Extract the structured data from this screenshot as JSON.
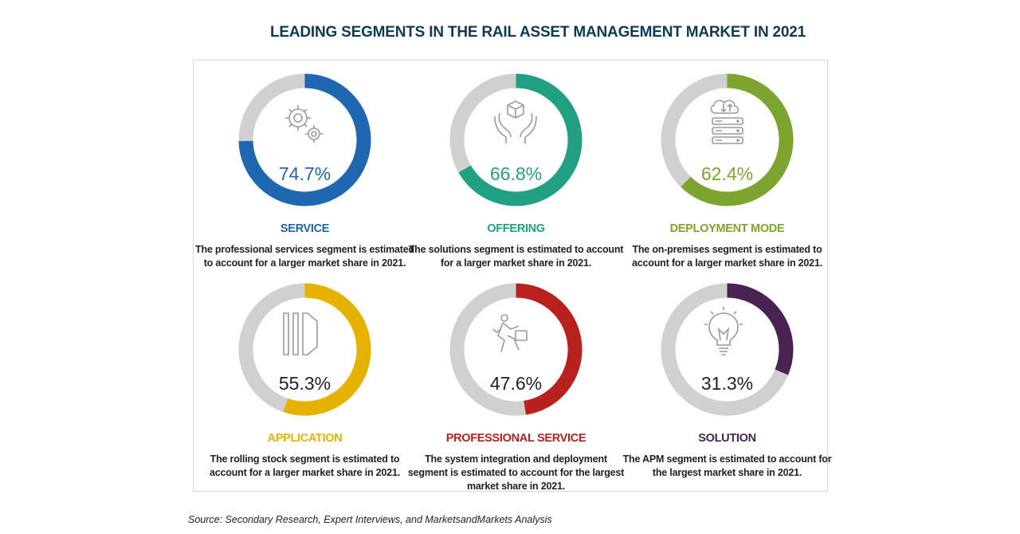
{
  "title": "LEADING SEGMENTS IN THE RAIL ASSET MANAGEMENT MARKET IN 2021",
  "source": "Source: Secondary Research, Expert Interviews, and MarketsandMarkets Analysis",
  "chart_data": {
    "type": "pie",
    "title": "LEADING SEGMENTS IN THE RAIL ASSET MANAGEMENT MARKET IN 2021",
    "charts": [
      {
        "category": "SERVICE",
        "value": 74.7,
        "label": "74.7%",
        "color": "#1f67b1",
        "icon": "gears-icon",
        "description": "The professional services segment is estimated to account for a larger market share in 2021."
      },
      {
        "category": "OFFERING",
        "value": 66.8,
        "label": "66.8%",
        "color": "#22a083",
        "icon": "hands-box-icon",
        "description": "The solutions segment is estimated to account for a larger market share in 2021."
      },
      {
        "category": "DEPLOYMENT MODE",
        "value": 62.4,
        "label": "62.4%",
        "color": "#7da42e",
        "icon": "cloud-server-icon",
        "description": "The on-premises segment is estimated to account for a larger market share in 2021."
      },
      {
        "category": "APPLICATION",
        "value": 55.3,
        "label": "55.3%",
        "color": "#e6b200",
        "icon": "rolling-stock-icon",
        "description": "The rolling stock segment is estimated to account for a larger market share in 2021."
      },
      {
        "category": "PROFESSIONAL SERVICE",
        "value": 47.6,
        "label": "47.6%",
        "color": "#b8211e",
        "icon": "worker-icon",
        "description": "The system integration and deployment segment is estimated to account for the largest market share in 2021."
      },
      {
        "category": "SOLUTION",
        "value": 31.3,
        "label": "31.3%",
        "color": "#4a2352",
        "icon": "lightbulb-icon",
        "description": "The APM segment is estimated to account for the largest market share in 2021."
      }
    ],
    "remainder_color": "#d0d0d0",
    "text_color": "#222222"
  }
}
